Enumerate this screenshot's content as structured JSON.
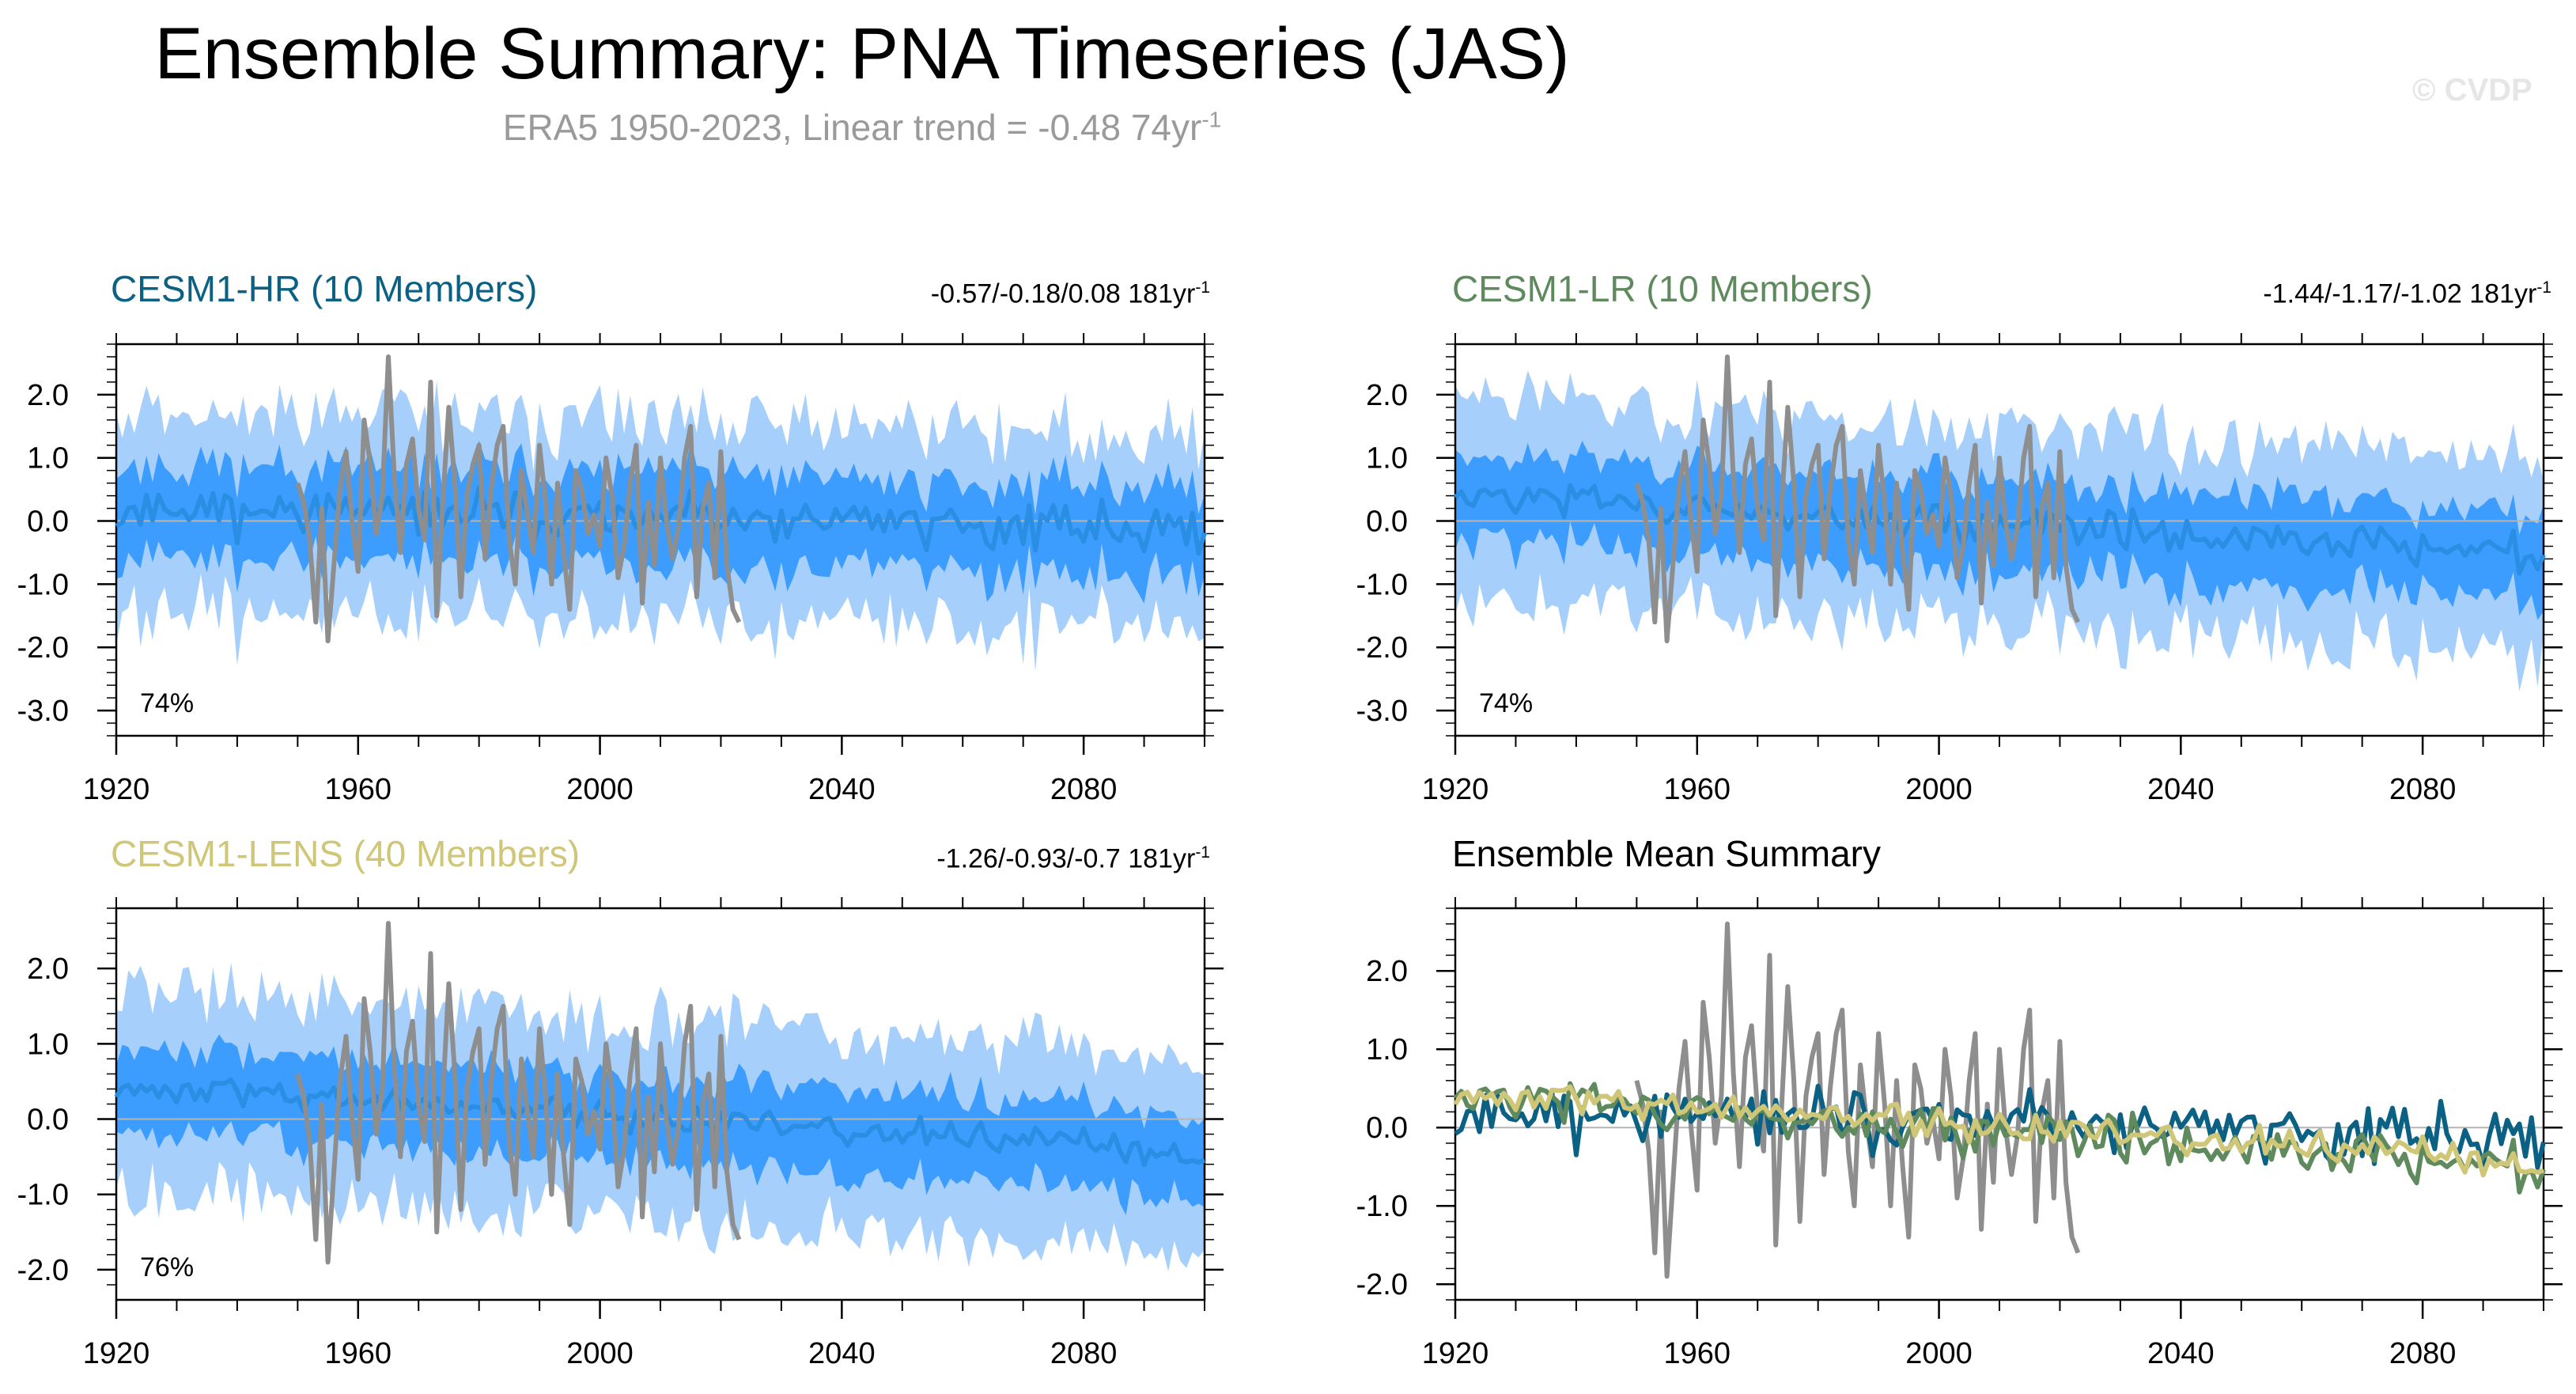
{
  "title": "Ensemble Summary: PNA Timeseries (JAS)",
  "subtitle": "ERA5 1950-2023, Linear trend = -0.48 74yr",
  "subtitle_sup": "-1",
  "watermark": "© CVDP",
  "colors": {
    "hr": "#0b6184",
    "lr": "#5f8a5e",
    "lens": "#cfc677",
    "obs": "#8e8e8e",
    "mean_line": "#2a8fe3",
    "band_outer": "#a6d0fb",
    "band_inner": "#3d9dff"
  },
  "panels": [
    {
      "key": "hr",
      "title": "CESM1-HR (10 Members)",
      "stat": "-0.57/-0.18/0.08 181yr",
      "stat_sup": "-1",
      "percent": "74%",
      "ylim": [
        -3.4,
        2.8
      ],
      "yticks": [
        "-3.0",
        "-2.0",
        "-1.0",
        "0.0",
        "1.0",
        "2.0"
      ],
      "trend": [
        0.25,
        -0.15
      ],
      "noise": 0.26,
      "inner": 0.75,
      "outer": 1.6,
      "seed": 11
    },
    {
      "key": "lr",
      "title": "CESM1-LR (10 Members)",
      "stat": "-1.44/-1.17/-1.02 181yr",
      "stat_sup": "-1",
      "percent": "74%",
      "ylim": [
        -3.4,
        2.8
      ],
      "yticks": [
        "-3.0",
        "-2.0",
        "-1.0",
        "0.0",
        "1.0",
        "2.0"
      ],
      "trend": [
        0.45,
        -0.55
      ],
      "noise": 0.2,
      "inner": 0.75,
      "outer": 1.6,
      "seed": 23
    },
    {
      "key": "lens",
      "title": "CESM1-LENS (40 Members)",
      "stat": "-1.26/-0.93/-0.7 181yr",
      "stat_sup": "-1",
      "percent": "76%",
      "ylim": [
        -2.4,
        2.8
      ],
      "yticks": [
        "-2.0",
        "-1.0",
        "0.0",
        "1.0",
        "2.0"
      ],
      "trend": [
        0.45,
        -0.45
      ],
      "noise": 0.14,
      "inner": 0.6,
      "outer": 1.35,
      "seed": 37
    },
    {
      "key": "summary",
      "title": "Ensemble Mean Summary",
      "ylim": [
        -2.2,
        2.8
      ],
      "yticks": [
        "-2.0",
        "-1.0",
        "0.0",
        "1.0",
        "2.0"
      ]
    }
  ],
  "chart_data": {
    "type": "line",
    "x_range": [
      1920,
      2100
    ],
    "xticks": [
      "1920",
      "1960",
      "2000",
      "2040",
      "2080"
    ],
    "observed": {
      "name": "ERA5",
      "years": [
        1950,
        1951,
        1952,
        1953,
        1954,
        1955,
        1956,
        1957,
        1958,
        1959,
        1960,
        1961,
        1962,
        1963,
        1964,
        1965,
        1966,
        1967,
        1968,
        1969,
        1970,
        1971,
        1972,
        1973,
        1974,
        1975,
        1976,
        1977,
        1978,
        1979,
        1980,
        1981,
        1982,
        1983,
        1984,
        1985,
        1986,
        1987,
        1988,
        1989,
        1990,
        1991,
        1992,
        1993,
        1994,
        1995,
        1996,
        1997,
        1998,
        1999,
        2000,
        2001,
        2002,
        2003,
        2004,
        2005,
        2006,
        2007,
        2008,
        2009,
        2010,
        2011,
        2012,
        2013,
        2014,
        2015,
        2016,
        2017,
        2018,
        2019,
        2020,
        2021,
        2022,
        2023
      ],
      "values": [
        0.6,
        0.3,
        -0.3,
        -1.6,
        0.2,
        -1.9,
        -0.7,
        0.5,
        1.1,
        0.0,
        -0.8,
        1.6,
        0.9,
        -0.2,
        0.4,
        2.6,
        0.7,
        -0.5,
        0.9,
        1.3,
        0.2,
        -0.3,
        2.2,
        -1.5,
        0.3,
        1.8,
        0.6,
        -1.2,
        0.4,
        0.9,
        1.2,
        -0.6,
        0.5,
        1.2,
        1.5,
        -0.3,
        -1.0,
        0.8,
        0.1,
        -0.5,
        1.2,
        0.3,
        -1.0,
        0.6,
        -0.5,
        -1.4,
        0.8,
        0.5,
        -0.2,
        0.1,
        -0.4,
        1.0,
        0.4,
        -0.9,
        -0.4,
        0.6,
        1.2,
        -1.3,
        0.3,
        -0.7,
        1.0,
        0.0,
        -0.6,
        -0.1,
        1.0,
        1.5,
        -1.2,
        0.2,
        0.6,
        -0.9,
        1.1,
        -0.7,
        -1.4,
        -1.6
      ]
    },
    "series": [
      {
        "name": "CESM1-HR ensemble mean",
        "key": "hr"
      },
      {
        "name": "CESM1-LR ensemble mean",
        "key": "lr"
      },
      {
        "name": "CESM1-LENS ensemble mean",
        "key": "lens"
      }
    ],
    "xlabel": "",
    "ylabel": ""
  }
}
